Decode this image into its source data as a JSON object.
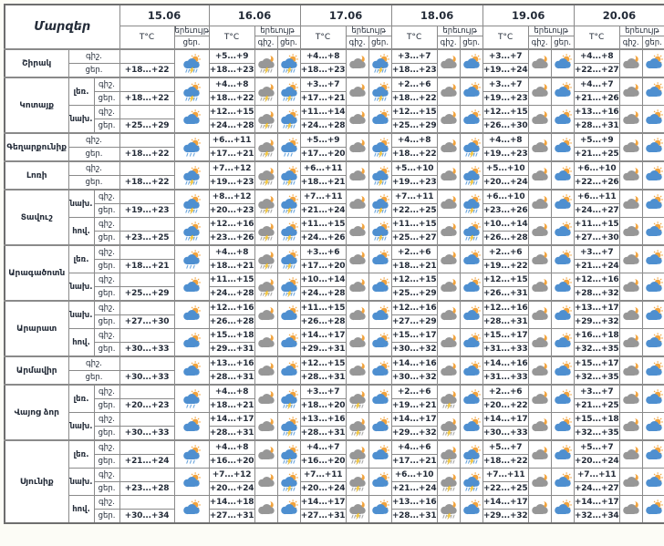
{
  "table": {
    "regions_header": "Մարզեր",
    "temp_header": "T°C",
    "phenomenon_header": "երեւույթ",
    "night_label": "գիշ.",
    "day_label": "ցեր.",
    "dates": [
      "15.06",
      "16.06",
      "17.06",
      "18.06",
      "19.06",
      "20.06"
    ]
  },
  "colors": {
    "border": "#8a8a8a",
    "text": "#232b38",
    "background": "#ffffff",
    "day_cloud": "#4e8fd0",
    "night_cloud": "#979797",
    "sun": "#f2a33c",
    "lightning": "#ffd23f",
    "day_rain": "#6aa5dd",
    "night_rain": "#a8a8a8"
  },
  "icon_legend": {
    "day-partly": "sun behind blue cloud",
    "day-rain": "sun, blue cloud and rain",
    "day-storm": "sun, blue cloud, lightning and rain",
    "night-partly": "moon behind gray cloud",
    "night-storm": "moon, gray cloud, lightning and rain"
  },
  "regions": [
    {
      "name": "Շիրակ",
      "entries": [
        {
          "sub": null,
          "days": [
            {
              "n": "",
              "d": "+18...+22",
              "ni": null,
              "di": "day-storm"
            },
            {
              "n": "+5...+9",
              "d": "+18...+23",
              "ni": "night-storm",
              "di": "day-storm"
            },
            {
              "n": "+4...+8",
              "d": "+18...+23",
              "ni": "night-partly",
              "di": "day-storm"
            },
            {
              "n": "+3...+7",
              "d": "+18...+23",
              "ni": "night-partly",
              "di": "day-partly"
            },
            {
              "n": "+3...+7",
              "d": "+19...+24",
              "ni": "night-partly",
              "di": "day-partly"
            },
            {
              "n": "+4...+8",
              "d": "+22...+27",
              "ni": "night-partly",
              "di": "day-partly"
            }
          ]
        }
      ]
    },
    {
      "name": "Կոտայք",
      "entries": [
        {
          "sub": "լեռ.",
          "days": [
            {
              "n": "",
              "d": "+18...+22",
              "ni": null,
              "di": "day-storm"
            },
            {
              "n": "+4...+8",
              "d": "+18...+22",
              "ni": "night-storm",
              "di": "day-storm"
            },
            {
              "n": "+3...+7",
              "d": "+17...+21",
              "ni": "night-partly",
              "di": "day-storm"
            },
            {
              "n": "+2...+6",
              "d": "+18...+22",
              "ni": "night-partly",
              "di": "day-partly"
            },
            {
              "n": "+3...+7",
              "d": "+19...+23",
              "ni": "night-partly",
              "di": "day-partly"
            },
            {
              "n": "+4...+7",
              "d": "+21...+26",
              "ni": "night-partly",
              "di": "day-partly"
            }
          ]
        },
        {
          "sub": "նախ.",
          "days": [
            {
              "n": "",
              "d": "+25...+29",
              "ni": null,
              "di": "day-partly"
            },
            {
              "n": "+12...+15",
              "d": "+24...+28",
              "ni": "night-storm",
              "di": "day-storm"
            },
            {
              "n": "+11...+14",
              "d": "+24...+28",
              "ni": "night-partly",
              "di": "day-partly"
            },
            {
              "n": "+12...+15",
              "d": "+25...+29",
              "ni": "night-partly",
              "di": "day-partly"
            },
            {
              "n": "+12...+15",
              "d": "+26...+30",
              "ni": "night-partly",
              "di": "day-partly"
            },
            {
              "n": "+13...+16",
              "d": "+28...+31",
              "ni": "night-partly",
              "di": "day-partly"
            }
          ]
        }
      ]
    },
    {
      "name": "Գեղարքունիք",
      "entries": [
        {
          "sub": null,
          "days": [
            {
              "n": "",
              "d": "+18...+22",
              "ni": null,
              "di": "day-rain"
            },
            {
              "n": "+6...+11",
              "d": "+17...+21",
              "ni": "night-storm",
              "di": "day-rain"
            },
            {
              "n": "+5...+9",
              "d": "+17...+20",
              "ni": "night-partly",
              "di": "day-storm"
            },
            {
              "n": "+4...+8",
              "d": "+18...+22",
              "ni": "night-partly",
              "di": "day-storm"
            },
            {
              "n": "+4...+8",
              "d": "+19...+23",
              "ni": "night-partly",
              "di": "day-partly"
            },
            {
              "n": "+5...+9",
              "d": "+21...+25",
              "ni": "night-partly",
              "di": "day-partly"
            }
          ]
        }
      ]
    },
    {
      "name": "Լոռի",
      "entries": [
        {
          "sub": null,
          "days": [
            {
              "n": "",
              "d": "+18...+22",
              "ni": null,
              "di": "day-storm"
            },
            {
              "n": "+7...+12",
              "d": "+19...+23",
              "ni": "night-storm",
              "di": "day-storm"
            },
            {
              "n": "+6...+11",
              "d": "+18...+21",
              "ni": "night-partly",
              "di": "day-storm"
            },
            {
              "n": "+5...+10",
              "d": "+19...+23",
              "ni": "night-partly",
              "di": "day-storm"
            },
            {
              "n": "+5...+10",
              "d": "+20...+24",
              "ni": "night-partly",
              "di": "day-partly"
            },
            {
              "n": "+6...+10",
              "d": "+22...+26",
              "ni": "night-partly",
              "di": "day-partly"
            }
          ]
        }
      ]
    },
    {
      "name": "Տավուշ",
      "entries": [
        {
          "sub": "նախ.",
          "days": [
            {
              "n": "",
              "d": "+19...+23",
              "ni": null,
              "di": "day-storm"
            },
            {
              "n": "+8...+12",
              "d": "+20...+23",
              "ni": "night-storm",
              "di": "day-storm"
            },
            {
              "n": "+7...+11",
              "d": "+21...+24",
              "ni": "night-partly",
              "di": "day-storm"
            },
            {
              "n": "+7...+11",
              "d": "+22...+25",
              "ni": "night-partly",
              "di": "day-storm"
            },
            {
              "n": "+6...+10",
              "d": "+23...+26",
              "ni": "night-partly",
              "di": "day-partly"
            },
            {
              "n": "+6...+11",
              "d": "+24...+27",
              "ni": "night-partly",
              "di": "day-partly"
            }
          ]
        },
        {
          "sub": "հով.",
          "days": [
            {
              "n": "",
              "d": "+23...+25",
              "ni": null,
              "di": "day-storm"
            },
            {
              "n": "+12...+16",
              "d": "+23...+26",
              "ni": "night-storm",
              "di": "day-storm"
            },
            {
              "n": "+11...+15",
              "d": "+24...+26",
              "ni": "night-partly",
              "di": "day-storm"
            },
            {
              "n": "+11...+15",
              "d": "+25...+27",
              "ni": "night-partly",
              "di": "day-storm"
            },
            {
              "n": "+10...+14",
              "d": "+26...+28",
              "ni": "night-partly",
              "di": "day-partly"
            },
            {
              "n": "+11...+15",
              "d": "+27...+30",
              "ni": "night-partly",
              "di": "day-partly"
            }
          ]
        }
      ]
    },
    {
      "name": "Արագածոտն",
      "entries": [
        {
          "sub": "լեռ.",
          "days": [
            {
              "n": "",
              "d": "+18...+21",
              "ni": null,
              "di": "day-rain"
            },
            {
              "n": "+4...+8",
              "d": "+18...+21",
              "ni": "night-storm",
              "di": "day-storm"
            },
            {
              "n": "+3...+6",
              "d": "+17...+20",
              "ni": "night-partly",
              "di": "day-partly"
            },
            {
              "n": "+2...+6",
              "d": "+18...+21",
              "ni": "night-partly",
              "di": "day-partly"
            },
            {
              "n": "+2...+6",
              "d": "+19...+22",
              "ni": "night-partly",
              "di": "day-partly"
            },
            {
              "n": "+3...+7",
              "d": "+21...+24",
              "ni": "night-partly",
              "di": "day-partly"
            }
          ]
        },
        {
          "sub": "նախ.",
          "days": [
            {
              "n": "",
              "d": "+25...+29",
              "ni": null,
              "di": "day-partly"
            },
            {
              "n": "+11...+15",
              "d": "+24...+28",
              "ni": "night-storm",
              "di": "day-storm"
            },
            {
              "n": "+10...+14",
              "d": "+24...+28",
              "ni": "night-partly",
              "di": "day-partly"
            },
            {
              "n": "+12...+15",
              "d": "+25...+29",
              "ni": "night-partly",
              "di": "day-partly"
            },
            {
              "n": "+12...+15",
              "d": "+26...+31",
              "ni": "night-partly",
              "di": "day-partly"
            },
            {
              "n": "+12...+16",
              "d": "+28...+32",
              "ni": "night-partly",
              "di": "day-partly"
            }
          ]
        }
      ]
    },
    {
      "name": "Արարատ",
      "entries": [
        {
          "sub": "նախ.",
          "days": [
            {
              "n": "",
              "d": "+27...+30",
              "ni": null,
              "di": "day-partly"
            },
            {
              "n": "+12...+16",
              "d": "+26...+28",
              "ni": "night-partly",
              "di": "day-partly"
            },
            {
              "n": "+11...+15",
              "d": "+26...+28",
              "ni": "night-partly",
              "di": "day-partly"
            },
            {
              "n": "+12...+16",
              "d": "+27...+29",
              "ni": "night-partly",
              "di": "day-partly"
            },
            {
              "n": "+12...+16",
              "d": "+28...+31",
              "ni": "night-partly",
              "di": "day-partly"
            },
            {
              "n": "+13...+17",
              "d": "+29...+32",
              "ni": "night-partly",
              "di": "day-partly"
            }
          ]
        },
        {
          "sub": "հով.",
          "days": [
            {
              "n": "",
              "d": "+30...+33",
              "ni": null,
              "di": "day-partly"
            },
            {
              "n": "+15...+18",
              "d": "+29...+31",
              "ni": "night-partly",
              "di": "day-partly"
            },
            {
              "n": "+14...+17",
              "d": "+29...+31",
              "ni": "night-partly",
              "di": "day-partly"
            },
            {
              "n": "+15...+17",
              "d": "+30...+32",
              "ni": "night-partly",
              "di": "day-partly"
            },
            {
              "n": "+15...+17",
              "d": "+31...+33",
              "ni": "night-partly",
              "di": "day-partly"
            },
            {
              "n": "+16...+18",
              "d": "+32...+35",
              "ni": "night-partly",
              "di": "day-partly"
            }
          ]
        }
      ]
    },
    {
      "name": "Արմավիր",
      "entries": [
        {
          "sub": null,
          "days": [
            {
              "n": "",
              "d": "+30...+33",
              "ni": null,
              "di": "day-partly"
            },
            {
              "n": "+13...+16",
              "d": "+28...+31",
              "ni": "night-partly",
              "di": "day-partly"
            },
            {
              "n": "+12...+15",
              "d": "+28...+31",
              "ni": "night-partly",
              "di": "day-partly"
            },
            {
              "n": "+14...+16",
              "d": "+30...+32",
              "ni": "night-partly",
              "di": "day-partly"
            },
            {
              "n": "+14...+16",
              "d": "+31...+33",
              "ni": "night-partly",
              "di": "day-partly"
            },
            {
              "n": "+15...+17",
              "d": "+32...+35",
              "ni": "night-partly",
              "di": "day-partly"
            }
          ]
        }
      ]
    },
    {
      "name": "Վայոց ձոր",
      "entries": [
        {
          "sub": "լեռ.",
          "days": [
            {
              "n": "",
              "d": "+20...+23",
              "ni": null,
              "di": "day-rain"
            },
            {
              "n": "+4...+8",
              "d": "+18...+21",
              "ni": "night-partly",
              "di": "day-storm"
            },
            {
              "n": "+3...+7",
              "d": "+18...+20",
              "ni": "night-storm",
              "di": "day-partly"
            },
            {
              "n": "+2...+6",
              "d": "+19...+21",
              "ni": "night-storm",
              "di": "day-partly"
            },
            {
              "n": "+2...+6",
              "d": "+20...+22",
              "ni": "night-partly",
              "di": "day-partly"
            },
            {
              "n": "+3...+7",
              "d": "+21...+25",
              "ni": "night-partly",
              "di": "day-partly"
            }
          ]
        },
        {
          "sub": "նախ.",
          "days": [
            {
              "n": "",
              "d": "+30...+33",
              "ni": null,
              "di": "day-partly"
            },
            {
              "n": "+14...+17",
              "d": "+28...+31",
              "ni": "night-partly",
              "di": "day-storm"
            },
            {
              "n": "+13...+16",
              "d": "+28...+31",
              "ni": "night-storm",
              "di": "day-partly"
            },
            {
              "n": "+14...+17",
              "d": "+29...+32",
              "ni": "night-storm",
              "di": "day-partly"
            },
            {
              "n": "+14...+17",
              "d": "+30...+33",
              "ni": "night-partly",
              "di": "day-partly"
            },
            {
              "n": "+15...+18",
              "d": "+32...+35",
              "ni": "night-partly",
              "di": "day-partly"
            }
          ]
        }
      ]
    },
    {
      "name": "Սյունիք",
      "entries": [
        {
          "sub": "լեռ.",
          "days": [
            {
              "n": "",
              "d": "+21...+24",
              "ni": null,
              "di": "day-rain"
            },
            {
              "n": "+4...+8",
              "d": "+16...+20",
              "ni": "night-partly",
              "di": "day-storm"
            },
            {
              "n": "+4...+7",
              "d": "+16...+20",
              "ni": "night-storm",
              "di": "day-partly"
            },
            {
              "n": "+4...+6",
              "d": "+17...+21",
              "ni": "night-storm",
              "di": "day-storm"
            },
            {
              "n": "+5...+7",
              "d": "+18...+22",
              "ni": "night-partly",
              "di": "day-partly"
            },
            {
              "n": "+5...+7",
              "d": "+20...+24",
              "ni": "night-partly",
              "di": "day-partly"
            }
          ]
        },
        {
          "sub": "նախ.",
          "days": [
            {
              "n": "",
              "d": "+23...+28",
              "ni": null,
              "di": "day-partly"
            },
            {
              "n": "+7...+12",
              "d": "+20...+24",
              "ni": "night-partly",
              "di": "day-storm"
            },
            {
              "n": "+7...+11",
              "d": "+20...+24",
              "ni": "night-storm",
              "di": "day-partly"
            },
            {
              "n": "+6...+10",
              "d": "+21...+24",
              "ni": "night-storm",
              "di": "day-storm"
            },
            {
              "n": "+7...+11",
              "d": "+22...+25",
              "ni": "night-partly",
              "di": "day-partly"
            },
            {
              "n": "+7...+11",
              "d": "+24...+27",
              "ni": "night-partly",
              "di": "day-partly"
            }
          ]
        },
        {
          "sub": "հով.",
          "days": [
            {
              "n": "",
              "d": "+30...+34",
              "ni": null,
              "di": "day-partly"
            },
            {
              "n": "+14...+18",
              "d": "+27...+31",
              "ni": "night-partly",
              "di": "day-partly"
            },
            {
              "n": "+14...+17",
              "d": "+27...+31",
              "ni": "night-storm",
              "di": "day-partly"
            },
            {
              "n": "+13...+16",
              "d": "+28...+31",
              "ni": "night-storm",
              "di": "day-partly"
            },
            {
              "n": "+14...+17",
              "d": "+29...+32",
              "ni": "night-partly",
              "di": "day-partly"
            },
            {
              "n": "+14...+17",
              "d": "+32...+34",
              "ni": "night-partly",
              "di": "day-partly"
            }
          ]
        }
      ]
    }
  ]
}
